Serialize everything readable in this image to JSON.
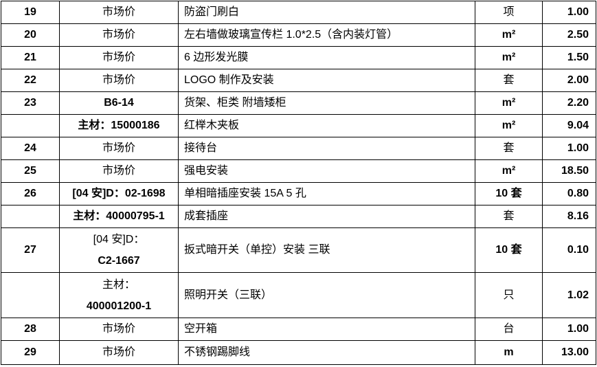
{
  "rows": [
    {
      "no": "19",
      "code": "市场价",
      "desc": "防盗门刷白",
      "unit": "项",
      "qty": "1.00",
      "h": 33
    },
    {
      "no": "20",
      "code": "市场价",
      "desc": "左右墙做玻璃宣传栏 1.0*2.5（含内装灯管）",
      "unit": "m²",
      "qty": "2.50",
      "h": 33
    },
    {
      "no": "21",
      "code": "市场价",
      "desc": "6 边形发光膜",
      "unit": "m²",
      "qty": "1.50",
      "h": 33
    },
    {
      "no": "22",
      "code": "市场价",
      "desc": "LOGO 制作及安装",
      "unit": "套",
      "qty": "2.00",
      "h": 33
    },
    {
      "no": "23",
      "code": "B6-14",
      "desc": "货架、柜类 附墙矮柜",
      "unit": "m²",
      "qty": "2.20",
      "h": 33,
      "code_bold": true
    },
    {
      "no": "",
      "code": "主材：15000186",
      "desc": "红榉木夹板",
      "unit": "m²",
      "qty": "9.04",
      "h": 33
    },
    {
      "no": "24",
      "code": "市场价",
      "desc": "接待台",
      "unit": "套",
      "qty": "1.00",
      "h": 33
    },
    {
      "no": "25",
      "code": "市场价",
      "desc": "强电安装",
      "unit": "m²",
      "qty": "18.50",
      "h": 33
    },
    {
      "no": "26",
      "code": "[04 安]D：02-1698",
      "desc": "单相暗插座安装  15A 5 孔",
      "unit": "10 套",
      "qty": "0.80",
      "h": 33
    },
    {
      "no": "",
      "code": "主材：40000795-1",
      "desc": "成套插座",
      "unit": "套",
      "qty": "8.16",
      "h": 33
    },
    {
      "no": "27",
      "code": "[04 安]D：",
      "code2": "C2-1667",
      "desc": "扳式暗开关（单控）安装  三联",
      "unit": "10 套",
      "qty": "0.10",
      "h": 65
    },
    {
      "no": "",
      "code": "主材：",
      "code2": "400001200-1",
      "desc": "照明开关（三联）",
      "unit": "只",
      "qty": "1.02",
      "h": 66
    },
    {
      "no": "28",
      "code": "市场价",
      "desc": "空开箱",
      "unit": "台",
      "qty": "1.00",
      "h": 33
    },
    {
      "no": "29",
      "code": "市场价",
      "desc": "不锈钢踢脚线",
      "unit": "m",
      "qty": "13.00",
      "h": 35
    }
  ]
}
